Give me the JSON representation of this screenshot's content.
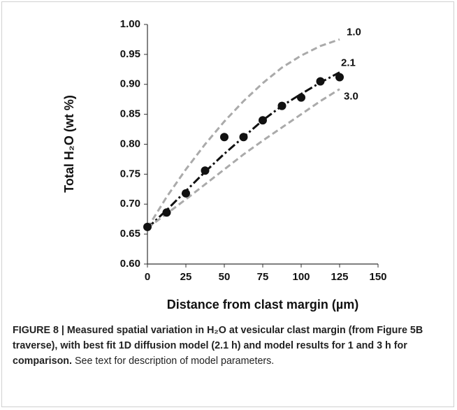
{
  "chart_data": {
    "type": "scatter",
    "y_label": "Total H₂O (wt %)",
    "x_label": "Distance from clast margin (µm)",
    "x": [
      0,
      12.5,
      25,
      37.5,
      50,
      62.5,
      75,
      87.5,
      100,
      112.5,
      125
    ],
    "series": [
      {
        "type": "scatter",
        "color": "#111111",
        "values": [
          0.662,
          0.686,
          0.718,
          0.756,
          0.812,
          0.812,
          0.84,
          0.864,
          0.878,
          0.905,
          0.912
        ]
      },
      {
        "name": "1.0",
        "type": "line",
        "color": "#aaaaaa",
        "dash": "dashed",
        "values": [
          0.66,
          0.712,
          0.758,
          0.8,
          0.838,
          0.872,
          0.902,
          0.928,
          0.948,
          0.964,
          0.975
        ]
      },
      {
        "name": "2.1",
        "type": "line",
        "color": "#111111",
        "dash": "dashdot",
        "values": [
          0.66,
          0.69,
          0.722,
          0.754,
          0.784,
          0.812,
          0.84,
          0.864,
          0.884,
          0.903,
          0.92
        ]
      },
      {
        "name": "3.0",
        "type": "line",
        "color": "#aaaaaa",
        "dash": "dashed",
        "values": [
          0.66,
          0.684,
          0.708,
          0.733,
          0.758,
          0.783,
          0.806,
          0.828,
          0.85,
          0.872,
          0.892
        ]
      }
    ],
    "xlim": [
      0,
      150
    ],
    "xticks": [
      0,
      25,
      50,
      75,
      100,
      125,
      150
    ],
    "ylim": [
      0.6,
      1.0
    ],
    "yticks": [
      {
        "value": 0.6,
        "label": "0.60"
      },
      {
        "value": 0.65,
        "label": "0.65"
      },
      {
        "value": 0.7,
        "label": "0.70"
      },
      {
        "value": 0.75,
        "label": "0.75"
      },
      {
        "value": 0.8,
        "label": "0.80"
      },
      {
        "value": 0.85,
        "label": "0.85"
      },
      {
        "value": 0.9,
        "label": "0.90"
      },
      {
        "value": 0.95,
        "label": "0.95"
      },
      {
        "value": 1.0,
        "label": "1.00"
      }
    ],
    "grid": false
  },
  "caption": {
    "bold": "FIGURE 8 | Measured spatial variation in H₂O at vesicular clast margin (from Figure 5B traverse), with best fit 1D diffusion model (2.1 h) and model results for 1 and 3 h for comparison.",
    "text": "See text for description of model parameters."
  }
}
